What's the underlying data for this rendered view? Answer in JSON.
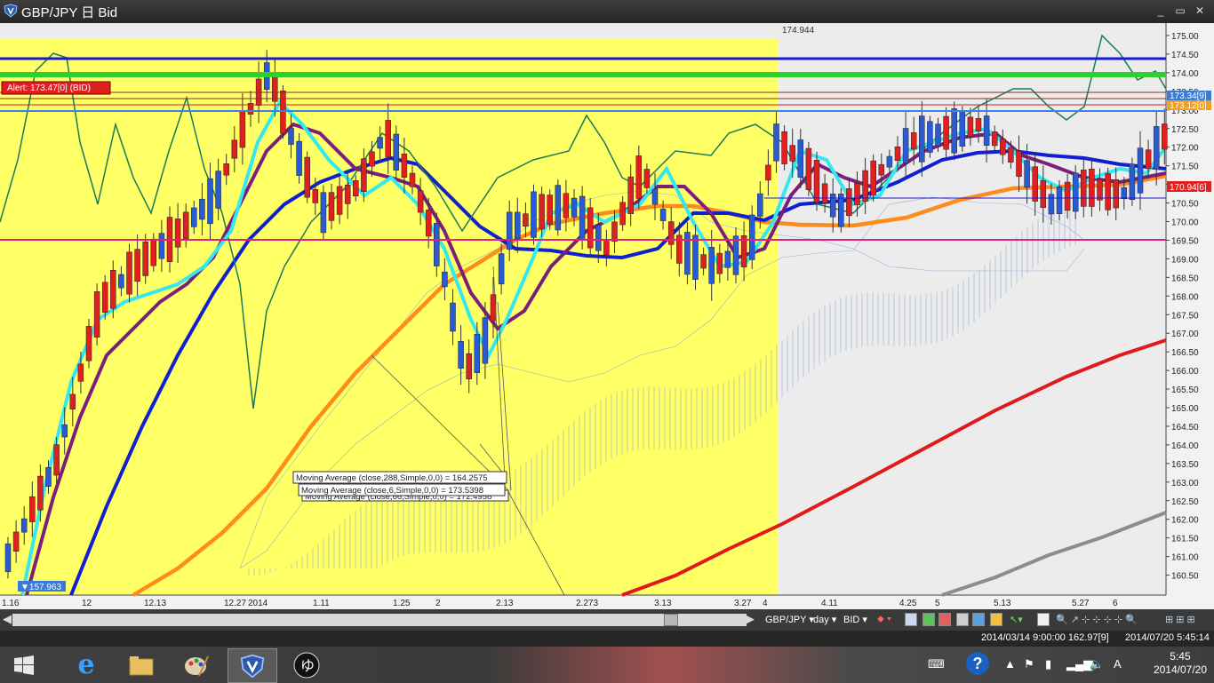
{
  "window": {
    "title": "GBP/JPY 日 Bid",
    "minimize": "_",
    "restore": "▭",
    "close": "✕"
  },
  "chart": {
    "price_axis_labels": [
      "175.00",
      "174.50",
      "174.00",
      "173.50",
      "173.00",
      "172.50",
      "172.00",
      "171.50",
      "171.00",
      "170.50",
      "170.00",
      "169.50",
      "169.00",
      "168.50",
      "168.00",
      "167.50",
      "167.00",
      "166.50",
      "166.00",
      "165.50",
      "165.00",
      "164.50",
      "164.00",
      "163.50",
      "163.00",
      "162.50",
      "162.00",
      "161.50",
      "161.00",
      "160.50"
    ],
    "date_axis_labels": [
      "1.16",
      "12",
      "12.13",
      "12.27",
      "2014",
      "1.11",
      "1.25",
      "2",
      "2.13",
      "2.273",
      "3.13",
      "3.27",
      "4",
      "4.11",
      "4.25",
      "5",
      "5.13",
      "5.27",
      "6"
    ],
    "high_label": "174.944",
    "alert_label": "Alert: 173.47[0] (BID)",
    "low_label": "▼157.963",
    "price_tags": [
      "173.34[9]",
      "173.12[0]",
      "170.94[6]"
    ],
    "tooltips": [
      "Moving Average (close,288,Simple,0,0) = 164.2575",
      "Moving Average (close,6,Simple,0,0) = 173.5398",
      "Moving Average (close,66,Simple,0,0) = 172.4958"
    ]
  },
  "toolbar": {
    "symbol": "GBP/JPY",
    "period": "day",
    "side": "BID"
  },
  "status": {
    "cursor_info": "2014/03/14 9:00:00   162.97[9]",
    "server_time": "2014/07/20 5:45:14"
  },
  "taskbar": {
    "ime": "A",
    "time": "5:45",
    "date": "2014/07/20"
  },
  "colors": {
    "highlight": "#ffff66",
    "bull_candle": "#2a5bd7",
    "bear_candle": "#e02020",
    "ma_fast": "#33e8ee",
    "ma_mid": "#7b1f7b",
    "ma_slow": "#1020d0",
    "ma_long": "#ff8c1a",
    "ma_288": "#e01a1a"
  }
}
